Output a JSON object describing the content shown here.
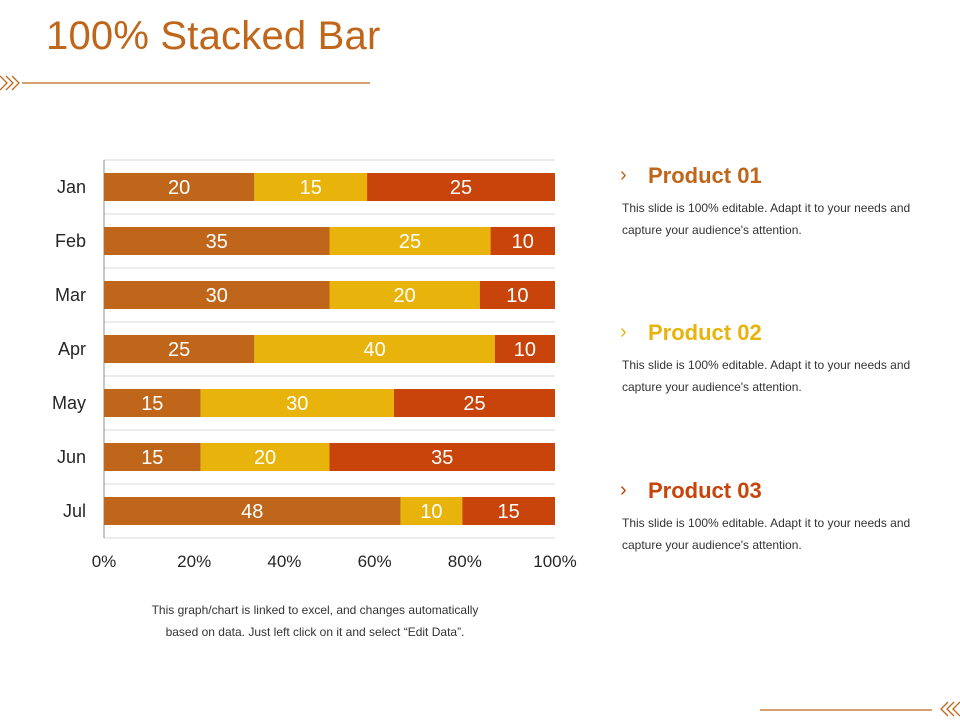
{
  "title": "100% Stacked Bar",
  "chart_data": {
    "type": "bar",
    "orientation": "horizontal",
    "stacked": "percent",
    "categories": [
      "Jan",
      "Feb",
      "Mar",
      "Apr",
      "May",
      "Jun",
      "Jul"
    ],
    "series": [
      {
        "values": [
          20,
          35,
          30,
          25,
          15,
          15,
          48
        ],
        "color": "#c0661a"
      },
      {
        "values": [
          15,
          25,
          20,
          40,
          30,
          20,
          10
        ],
        "color": "#e8b40c"
      },
      {
        "values": [
          25,
          10,
          10,
          10,
          25,
          35,
          15
        ],
        "color": "#c8440a"
      }
    ],
    "x_ticks": [
      "0%",
      "20%",
      "40%",
      "60%",
      "80%",
      "100%"
    ],
    "xlim": [
      0,
      100
    ],
    "grid": "horizontal",
    "legend": "none"
  },
  "footnote": {
    "line1": "This graph/chart is linked to excel, and changes automatically",
    "line2": "based on data. Just left click on it and select “Edit Data”."
  },
  "products": [
    {
      "chevron": "›",
      "name": "Product 01",
      "color": "#c0661a",
      "desc": "This slide is 100% editable. Adapt it to your needs and capture your audience's attention."
    },
    {
      "chevron": "›",
      "name": "Product 02",
      "color": "#e8b40c",
      "desc": "This slide is 100% editable. Adapt it to your needs and capture your audience's attention."
    },
    {
      "chevron": "›",
      "name": "Product 03",
      "color": "#c8440a",
      "desc": "This slide is 100% editable. Adapt it to your needs and capture your audience's attention."
    }
  ],
  "accent_color": "#c0661a"
}
